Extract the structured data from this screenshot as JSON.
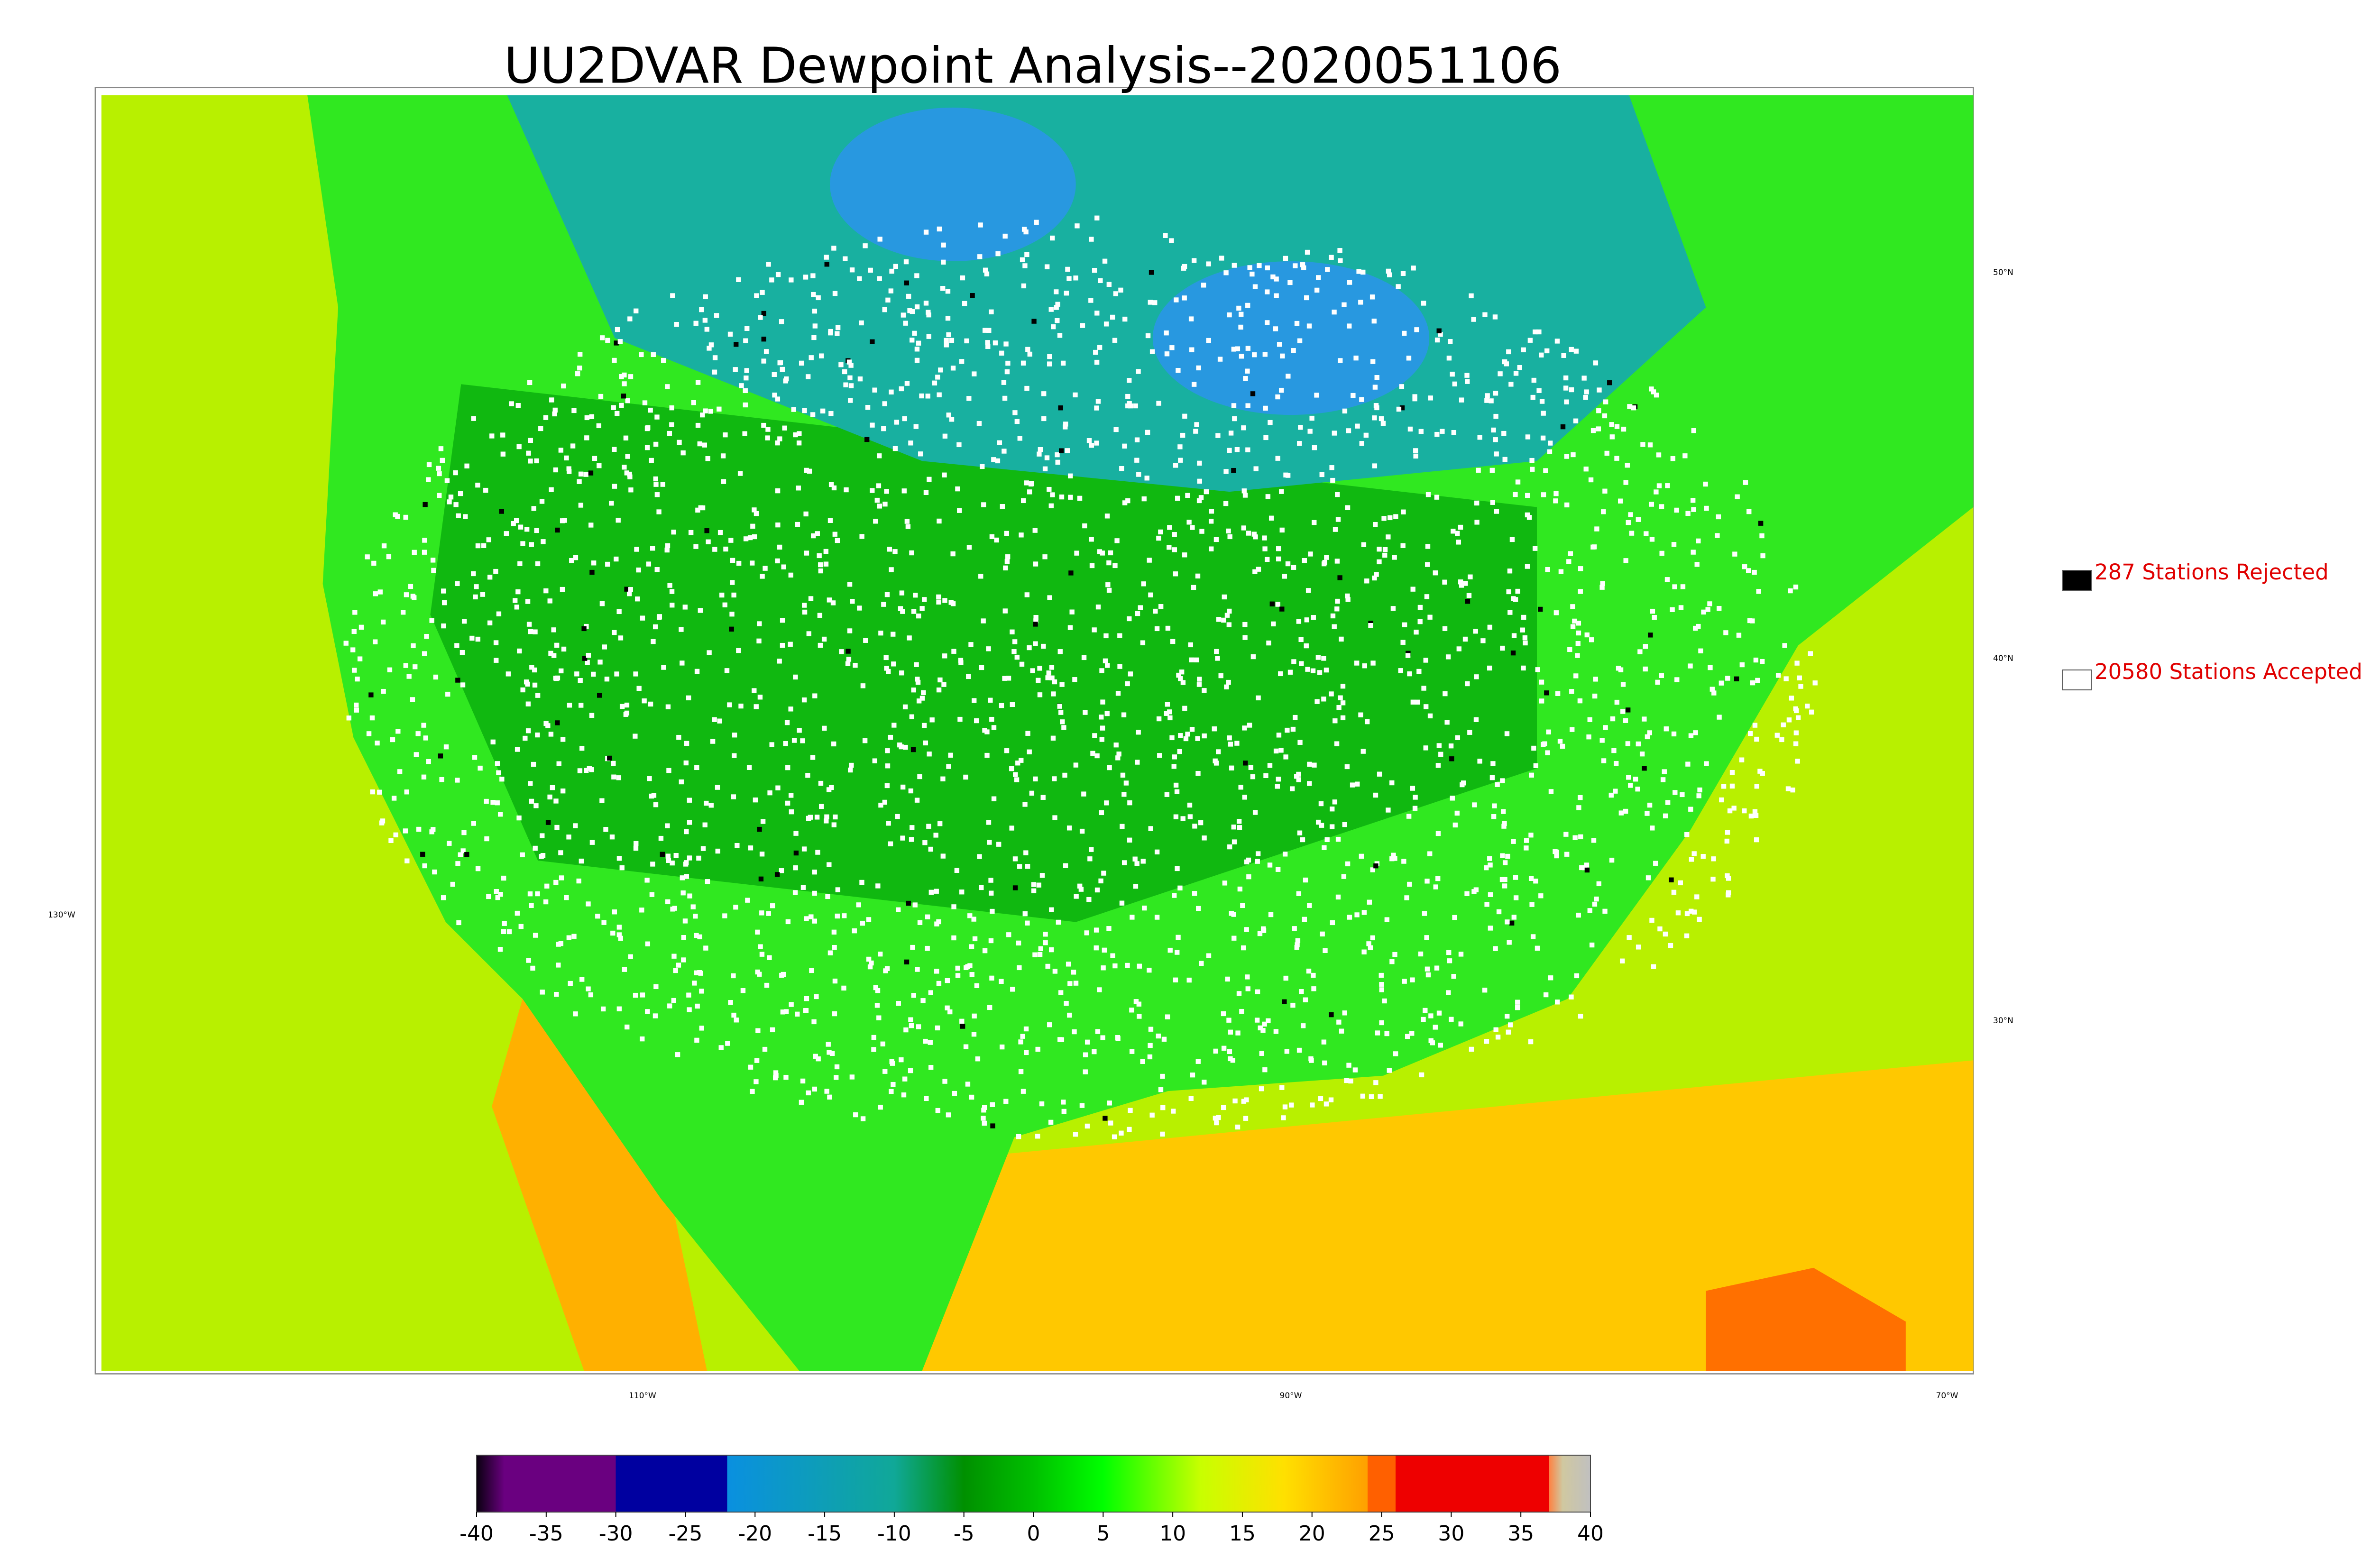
{
  "title": "UU2DVAR Dewpoint Analysis--2020051106",
  "legend": [
    {
      "label": "287 Stations Rejected",
      "color": "#000000"
    },
    {
      "label": "20580 Stations Accepted",
      "color": "#ffffff"
    }
  ],
  "latitude_labels": [
    "50°N",
    "40°N",
    "30°N"
  ],
  "longitude_labels": [
    "130°W",
    "110°W",
    "90°W",
    "70°W"
  ],
  "colorbar": {
    "range": [
      -40,
      40
    ],
    "ticks": [
      -40,
      -35,
      -30,
      -25,
      -20,
      -15,
      -10,
      -5,
      0,
      5,
      10,
      15,
      20,
      25,
      30,
      35,
      40
    ],
    "stops": [
      {
        "value": -40,
        "color": "#0a0010"
      },
      {
        "value": -38,
        "color": "#6a0080"
      },
      {
        "value": -30,
        "color": "#6a0080"
      },
      {
        "value": -30,
        "color": "#0000a0"
      },
      {
        "value": -22,
        "color": "#0000a0"
      },
      {
        "value": -22,
        "color": "#0a90e0"
      },
      {
        "value": -10,
        "color": "#10a898"
      },
      {
        "value": -5,
        "color": "#009000"
      },
      {
        "value": 0,
        "color": "#00c000"
      },
      {
        "value": 5,
        "color": "#00ff00"
      },
      {
        "value": 12,
        "color": "#c8ff00"
      },
      {
        "value": 18,
        "color": "#ffe000"
      },
      {
        "value": 24,
        "color": "#ffa000"
      },
      {
        "value": 24,
        "color": "#ff6000"
      },
      {
        "value": 26,
        "color": "#ff6000"
      },
      {
        "value": 26,
        "color": "#ee0000"
      },
      {
        "value": 37,
        "color": "#ee0000"
      },
      {
        "value": 37,
        "color": "#ff8040"
      },
      {
        "value": 38,
        "color": "#d0c8a0"
      },
      {
        "value": 40,
        "color": "#c0c0c0"
      }
    ]
  }
}
